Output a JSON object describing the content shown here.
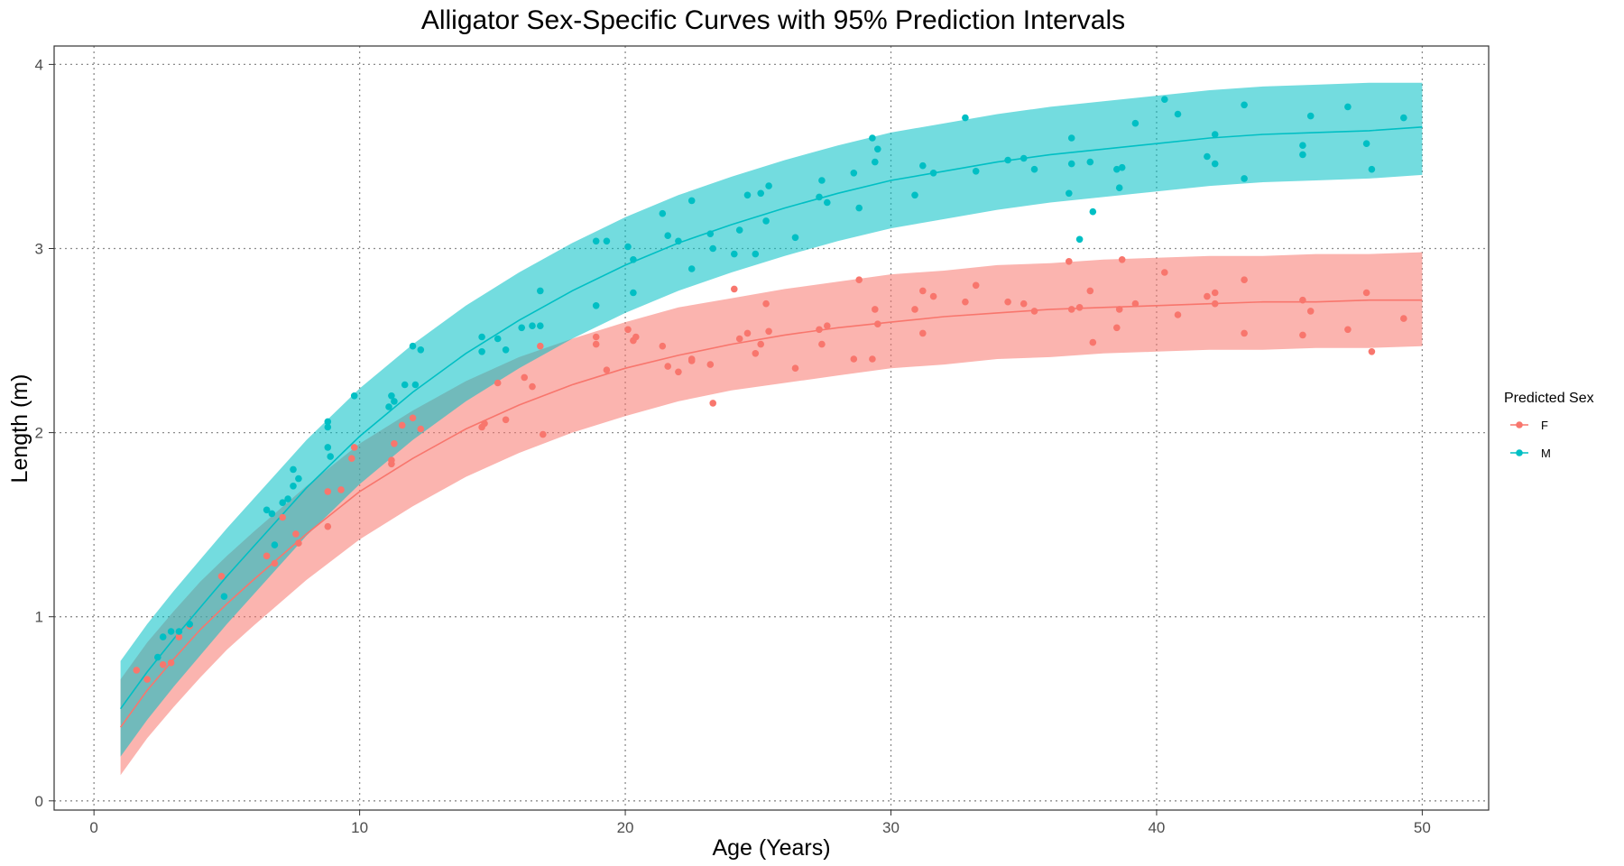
{
  "chart_data": {
    "type": "scatter",
    "title": "Alligator Sex-Specific Curves with 95% Prediction Intervals",
    "xlabel": "Age (Years)",
    "ylabel": "Length (m)",
    "xlim": [
      -1.5,
      52.5
    ],
    "ylim": [
      -0.05,
      4.1
    ],
    "x_ticks": [
      0,
      10,
      20,
      30,
      40,
      50
    ],
    "y_ticks": [
      0,
      1,
      2,
      3,
      4
    ],
    "grid": "dotted",
    "legend": {
      "title": "Predicted Sex",
      "position": "right",
      "entries": [
        "F",
        "M"
      ]
    },
    "series": [
      {
        "name": "F",
        "color": "#F8766D",
        "band_color": "#F8766D",
        "curve": {
          "x": [
            1,
            2,
            3,
            4,
            5,
            6,
            8,
            10,
            12,
            14,
            16,
            18,
            20,
            22,
            24,
            26,
            28,
            30,
            32,
            34,
            36,
            38,
            40,
            42,
            44,
            46,
            48,
            50
          ],
          "y": [
            0.4,
            0.6,
            0.77,
            0.93,
            1.07,
            1.2,
            1.45,
            1.68,
            1.86,
            2.02,
            2.15,
            2.26,
            2.35,
            2.42,
            2.48,
            2.53,
            2.57,
            2.6,
            2.63,
            2.65,
            2.67,
            2.68,
            2.69,
            2.7,
            2.71,
            2.71,
            2.72,
            2.72
          ],
          "lower": [
            0.14,
            0.34,
            0.51,
            0.67,
            0.82,
            0.95,
            1.2,
            1.42,
            1.6,
            1.76,
            1.89,
            2.0,
            2.09,
            2.17,
            2.23,
            2.27,
            2.31,
            2.35,
            2.37,
            2.4,
            2.41,
            2.43,
            2.44,
            2.45,
            2.45,
            2.46,
            2.46,
            2.47
          ],
          "upper": [
            0.66,
            0.86,
            1.03,
            1.19,
            1.33,
            1.46,
            1.71,
            1.94,
            2.12,
            2.28,
            2.41,
            2.51,
            2.6,
            2.68,
            2.73,
            2.78,
            2.82,
            2.86,
            2.88,
            2.91,
            2.92,
            2.94,
            2.95,
            2.96,
            2.96,
            2.97,
            2.97,
            2.98
          ]
        },
        "points": [
          [
            1.6,
            0.71
          ],
          [
            2.0,
            0.66
          ],
          [
            2.6,
            0.74
          ],
          [
            2.9,
            0.75
          ],
          [
            3.2,
            0.89
          ],
          [
            3.6,
            0.95
          ],
          [
            4.8,
            1.22
          ],
          [
            6.5,
            1.33
          ],
          [
            6.8,
            1.29
          ],
          [
            7.1,
            1.54
          ],
          [
            7.6,
            1.45
          ],
          [
            7.7,
            1.4
          ],
          [
            8.8,
            1.49
          ],
          [
            8.8,
            1.68
          ],
          [
            9.3,
            1.69
          ],
          [
            9.7,
            1.86
          ],
          [
            9.8,
            1.92
          ],
          [
            11.2,
            1.85
          ],
          [
            11.2,
            1.83
          ],
          [
            11.3,
            1.94
          ],
          [
            11.6,
            2.04
          ],
          [
            12.0,
            2.08
          ],
          [
            12.3,
            2.02
          ],
          [
            14.6,
            2.03
          ],
          [
            14.7,
            2.05
          ],
          [
            15.2,
            2.27
          ],
          [
            15.5,
            2.07
          ],
          [
            16.2,
            2.3
          ],
          [
            16.5,
            2.25
          ],
          [
            16.8,
            2.47
          ],
          [
            16.9,
            1.99
          ],
          [
            18.9,
            2.48
          ],
          [
            18.9,
            2.52
          ],
          [
            19.3,
            2.34
          ],
          [
            20.1,
            2.56
          ],
          [
            20.3,
            2.5
          ],
          [
            20.4,
            2.52
          ],
          [
            21.4,
            2.47
          ],
          [
            21.6,
            2.36
          ],
          [
            22.0,
            2.33
          ],
          [
            22.5,
            2.4
          ],
          [
            22.5,
            2.39
          ],
          [
            23.2,
            2.37
          ],
          [
            23.3,
            2.16
          ],
          [
            24.1,
            2.78
          ],
          [
            24.3,
            2.51
          ],
          [
            24.6,
            2.54
          ],
          [
            24.9,
            2.43
          ],
          [
            25.1,
            2.48
          ],
          [
            25.3,
            2.7
          ],
          [
            25.4,
            2.55
          ],
          [
            26.4,
            2.35
          ],
          [
            27.3,
            2.56
          ],
          [
            27.4,
            2.48
          ],
          [
            27.6,
            2.58
          ],
          [
            28.6,
            2.4
          ],
          [
            28.8,
            2.83
          ],
          [
            29.3,
            2.4
          ],
          [
            29.4,
            2.67
          ],
          [
            29.5,
            2.59
          ],
          [
            30.9,
            2.67
          ],
          [
            31.2,
            2.77
          ],
          [
            31.2,
            2.54
          ],
          [
            31.6,
            2.74
          ],
          [
            32.8,
            2.71
          ],
          [
            33.2,
            2.8
          ],
          [
            34.4,
            2.71
          ],
          [
            35.0,
            2.7
          ],
          [
            35.4,
            2.66
          ],
          [
            36.7,
            2.93
          ],
          [
            36.8,
            2.67
          ],
          [
            37.1,
            2.68
          ],
          [
            37.5,
            2.77
          ],
          [
            37.6,
            2.49
          ],
          [
            38.5,
            2.57
          ],
          [
            38.6,
            2.67
          ],
          [
            38.7,
            2.94
          ],
          [
            39.2,
            2.7
          ],
          [
            40.3,
            2.87
          ],
          [
            40.8,
            2.64
          ],
          [
            41.9,
            2.74
          ],
          [
            42.2,
            2.76
          ],
          [
            42.2,
            2.7
          ],
          [
            43.3,
            2.83
          ],
          [
            43.3,
            2.54
          ],
          [
            45.5,
            2.72
          ],
          [
            45.5,
            2.53
          ],
          [
            45.8,
            2.66
          ],
          [
            47.2,
            2.56
          ],
          [
            47.9,
            2.76
          ],
          [
            48.1,
            2.44
          ],
          [
            49.3,
            2.62
          ]
        ]
      },
      {
        "name": "M",
        "color": "#00BFC4",
        "band_color": "#00BFC4",
        "curve": {
          "x": [
            1,
            2,
            3,
            4,
            5,
            6,
            8,
            10,
            12,
            14,
            16,
            18,
            20,
            22,
            24,
            26,
            28,
            30,
            32,
            34,
            36,
            38,
            40,
            42,
            44,
            46,
            48,
            50
          ],
          "y": [
            0.5,
            0.7,
            0.88,
            1.05,
            1.22,
            1.38,
            1.7,
            1.98,
            2.22,
            2.43,
            2.61,
            2.77,
            2.91,
            3.03,
            3.13,
            3.22,
            3.3,
            3.37,
            3.42,
            3.47,
            3.51,
            3.54,
            3.57,
            3.6,
            3.62,
            3.63,
            3.64,
            3.66
          ],
          "lower": [
            0.24,
            0.44,
            0.62,
            0.79,
            0.96,
            1.12,
            1.44,
            1.72,
            1.96,
            2.17,
            2.35,
            2.51,
            2.65,
            2.77,
            2.87,
            2.96,
            3.04,
            3.11,
            3.16,
            3.21,
            3.25,
            3.28,
            3.31,
            3.34,
            3.36,
            3.37,
            3.38,
            3.4
          ],
          "upper": [
            0.76,
            0.96,
            1.14,
            1.31,
            1.48,
            1.64,
            1.96,
            2.24,
            2.48,
            2.69,
            2.87,
            3.03,
            3.17,
            3.29,
            3.39,
            3.48,
            3.56,
            3.63,
            3.68,
            3.73,
            3.77,
            3.8,
            3.83,
            3.86,
            3.88,
            3.89,
            3.9,
            3.9
          ]
        },
        "points": [
          [
            2.4,
            0.78
          ],
          [
            2.6,
            0.89
          ],
          [
            2.9,
            0.92
          ],
          [
            3.2,
            0.92
          ],
          [
            3.6,
            0.96
          ],
          [
            4.9,
            1.11
          ],
          [
            6.5,
            1.58
          ],
          [
            6.7,
            1.56
          ],
          [
            6.8,
            1.39
          ],
          [
            7.1,
            1.62
          ],
          [
            7.3,
            1.64
          ],
          [
            7.5,
            1.71
          ],
          [
            7.5,
            1.8
          ],
          [
            7.7,
            1.75
          ],
          [
            8.8,
            2.03
          ],
          [
            8.8,
            2.06
          ],
          [
            8.8,
            1.92
          ],
          [
            8.9,
            1.87
          ],
          [
            9.8,
            2.2
          ],
          [
            11.1,
            2.14
          ],
          [
            11.2,
            2.2
          ],
          [
            11.3,
            2.17
          ],
          [
            11.7,
            2.26
          ],
          [
            12.0,
            2.47
          ],
          [
            12.1,
            2.26
          ],
          [
            12.3,
            2.45
          ],
          [
            14.6,
            2.44
          ],
          [
            14.6,
            2.52
          ],
          [
            15.2,
            2.51
          ],
          [
            15.5,
            2.45
          ],
          [
            16.1,
            2.57
          ],
          [
            16.5,
            2.58
          ],
          [
            16.8,
            2.77
          ],
          [
            16.8,
            2.58
          ],
          [
            18.9,
            3.04
          ],
          [
            18.9,
            2.69
          ],
          [
            19.3,
            3.04
          ],
          [
            20.1,
            3.01
          ],
          [
            20.3,
            2.94
          ],
          [
            20.3,
            2.76
          ],
          [
            21.4,
            3.19
          ],
          [
            21.6,
            3.07
          ],
          [
            22.0,
            3.04
          ],
          [
            22.5,
            3.26
          ],
          [
            22.5,
            2.89
          ],
          [
            23.2,
            3.08
          ],
          [
            23.3,
            3.0
          ],
          [
            24.1,
            2.97
          ],
          [
            24.3,
            3.1
          ],
          [
            24.6,
            3.29
          ],
          [
            24.9,
            2.97
          ],
          [
            25.1,
            3.3
          ],
          [
            25.3,
            3.15
          ],
          [
            25.4,
            3.34
          ],
          [
            26.4,
            3.06
          ],
          [
            27.3,
            3.28
          ],
          [
            27.4,
            3.37
          ],
          [
            27.6,
            3.25
          ],
          [
            28.6,
            3.41
          ],
          [
            28.8,
            3.22
          ],
          [
            29.3,
            3.6
          ],
          [
            29.4,
            3.47
          ],
          [
            29.5,
            3.54
          ],
          [
            30.9,
            3.29
          ],
          [
            31.2,
            3.45
          ],
          [
            31.6,
            3.41
          ],
          [
            32.8,
            3.71
          ],
          [
            33.2,
            3.42
          ],
          [
            34.4,
            3.48
          ],
          [
            35.0,
            3.49
          ],
          [
            35.4,
            3.43
          ],
          [
            36.7,
            3.3
          ],
          [
            36.8,
            3.6
          ],
          [
            36.8,
            3.46
          ],
          [
            37.1,
            3.05
          ],
          [
            37.5,
            3.47
          ],
          [
            37.6,
            3.2
          ],
          [
            38.5,
            3.43
          ],
          [
            38.6,
            3.33
          ],
          [
            38.7,
            3.44
          ],
          [
            39.2,
            3.68
          ],
          [
            40.3,
            3.81
          ],
          [
            40.8,
            3.73
          ],
          [
            41.9,
            3.5
          ],
          [
            42.2,
            3.62
          ],
          [
            42.2,
            3.46
          ],
          [
            43.3,
            3.78
          ],
          [
            43.3,
            3.38
          ],
          [
            45.5,
            3.56
          ],
          [
            45.5,
            3.51
          ],
          [
            45.8,
            3.72
          ],
          [
            47.2,
            3.77
          ],
          [
            47.9,
            3.57
          ],
          [
            48.1,
            3.43
          ],
          [
            49.3,
            3.71
          ]
        ]
      }
    ]
  }
}
